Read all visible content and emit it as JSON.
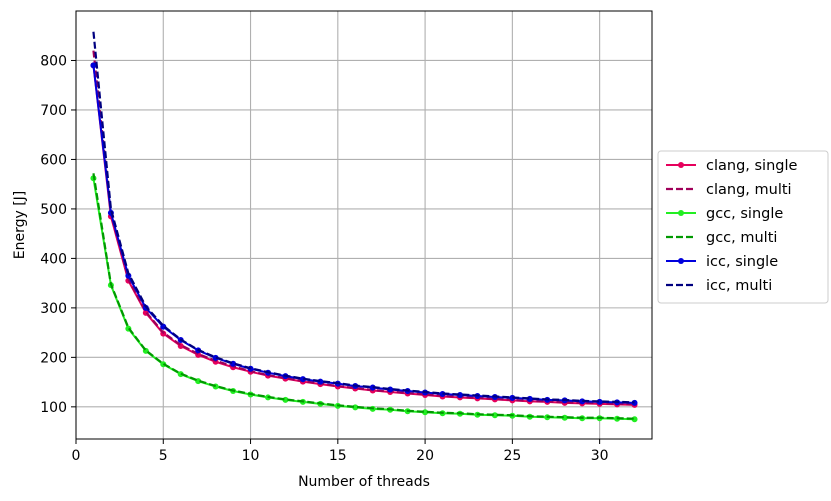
{
  "chart_data": {
    "type": "line",
    "title": "",
    "xlabel": "Number of threads",
    "ylabel": "Energy [J]",
    "xlim": [
      0,
      33
    ],
    "ylim": [
      35,
      900
    ],
    "xticks": [
      0,
      5,
      10,
      15,
      20,
      25,
      30
    ],
    "yticks": [
      100,
      200,
      300,
      400,
      500,
      600,
      700,
      800
    ],
    "grid": true,
    "legend_position": "outside-right",
    "x": [
      1,
      2,
      3,
      4,
      5,
      6,
      7,
      8,
      9,
      10,
      11,
      12,
      13,
      14,
      15,
      16,
      17,
      18,
      19,
      20,
      21,
      22,
      23,
      24,
      25,
      26,
      27,
      28,
      29,
      30,
      31,
      32
    ],
    "series": [
      {
        "name": "clang, single",
        "color": "#e6005c",
        "style": "solid-marker",
        "values": [
          790,
          485,
          355,
          290,
          248,
          223,
          205,
          191,
          180,
          171,
          163,
          157,
          151,
          146,
          141,
          137,
          133,
          130,
          127,
          124,
          121,
          119,
          117,
          115,
          113,
          111,
          110,
          108,
          107,
          106,
          105,
          104
        ]
      },
      {
        "name": "clang, multi",
        "color": "#a0005a",
        "style": "dashed",
        "values": [
          820,
          490,
          358,
          292,
          250,
          225,
          207,
          193,
          182,
          172,
          164,
          158,
          152,
          147,
          142,
          138,
          134,
          131,
          128,
          125,
          122,
          120,
          118,
          116,
          114,
          112,
          111,
          109,
          108,
          107,
          106,
          105
        ]
      },
      {
        "name": "gcc, single",
        "color": "#22ee22",
        "style": "solid-marker",
        "values": [
          562,
          346,
          258,
          213,
          186,
          166,
          152,
          141,
          132,
          125,
          119,
          114,
          110,
          106,
          102,
          99,
          96,
          94,
          91,
          89,
          87,
          86,
          84,
          83,
          82,
          80,
          79,
          78,
          77,
          77,
          76,
          75
        ]
      },
      {
        "name": "gcc, multi",
        "color": "#009900",
        "style": "dashed",
        "values": [
          572,
          348,
          260,
          214,
          187,
          167,
          153,
          142,
          133,
          126,
          120,
          115,
          111,
          107,
          103,
          100,
          97,
          95,
          92,
          90,
          88,
          87,
          85,
          84,
          83,
          81,
          80,
          79,
          78,
          78,
          77,
          76
        ]
      },
      {
        "name": "icc, single",
        "color": "#0000dd",
        "style": "solid-marker",
        "values": [
          790,
          492,
          365,
          300,
          262,
          235,
          214,
          199,
          187,
          177,
          169,
          162,
          156,
          151,
          147,
          142,
          139,
          135,
          132,
          129,
          126,
          124,
          122,
          120,
          118,
          116,
          114,
          113,
          111,
          110,
          109,
          108
        ]
      },
      {
        "name": "icc, multi",
        "color": "#000080",
        "style": "dashed",
        "values": [
          858,
          500,
          370,
          303,
          264,
          236,
          215,
          200,
          188,
          178,
          170,
          163,
          157,
          152,
          148,
          143,
          140,
          136,
          133,
          130,
          127,
          125,
          123,
          121,
          119,
          117,
          115,
          114,
          112,
          111,
          110,
          109
        ]
      }
    ]
  }
}
